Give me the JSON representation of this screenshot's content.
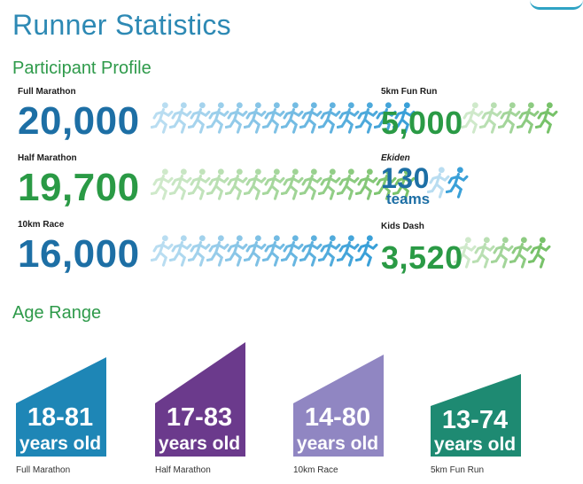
{
  "title": "Runner Statistics",
  "sections": {
    "participant_profile": "Participant Profile",
    "age_range": "Age Range"
  },
  "races": [
    {
      "label": "Full Marathon",
      "value": "20,000",
      "color": "#1d6fa5",
      "runner_color": "#3aa0d8"
    },
    {
      "label": "Half Marathon",
      "value": "19,700",
      "color": "#2a9a45",
      "runner_color": "#78c26a"
    },
    {
      "label": "10km Race",
      "value": "16,000",
      "color": "#1d6fa5",
      "runner_color": "#3aa0d8"
    },
    {
      "label": "5km Fun Run",
      "value": "5,000",
      "color": "#2a9a45",
      "runner_color": "#78c26a"
    },
    {
      "label": "Ekiden",
      "value": "130",
      "sub": "teams",
      "color": "#1d6fa5",
      "runner_color": "#3aa0d8"
    },
    {
      "label": "Kids Dash",
      "value": "3,520",
      "color": "#2a9a45",
      "runner_color": "#78c26a"
    }
  ],
  "ages": [
    {
      "range": "18-81",
      "unit": "years old",
      "caption": "Full Marathon",
      "color": "#1e86b6"
    },
    {
      "range": "17-83",
      "unit": "years old",
      "caption": "Half Marathon",
      "color": "#6b3a8c"
    },
    {
      "range": "14-80",
      "unit": "years old",
      "caption": "10km Race",
      "color": "#9086c2"
    },
    {
      "range": "13-74",
      "unit": "years old",
      "caption": "5km Fun Run",
      "color": "#1e8a72"
    }
  ]
}
